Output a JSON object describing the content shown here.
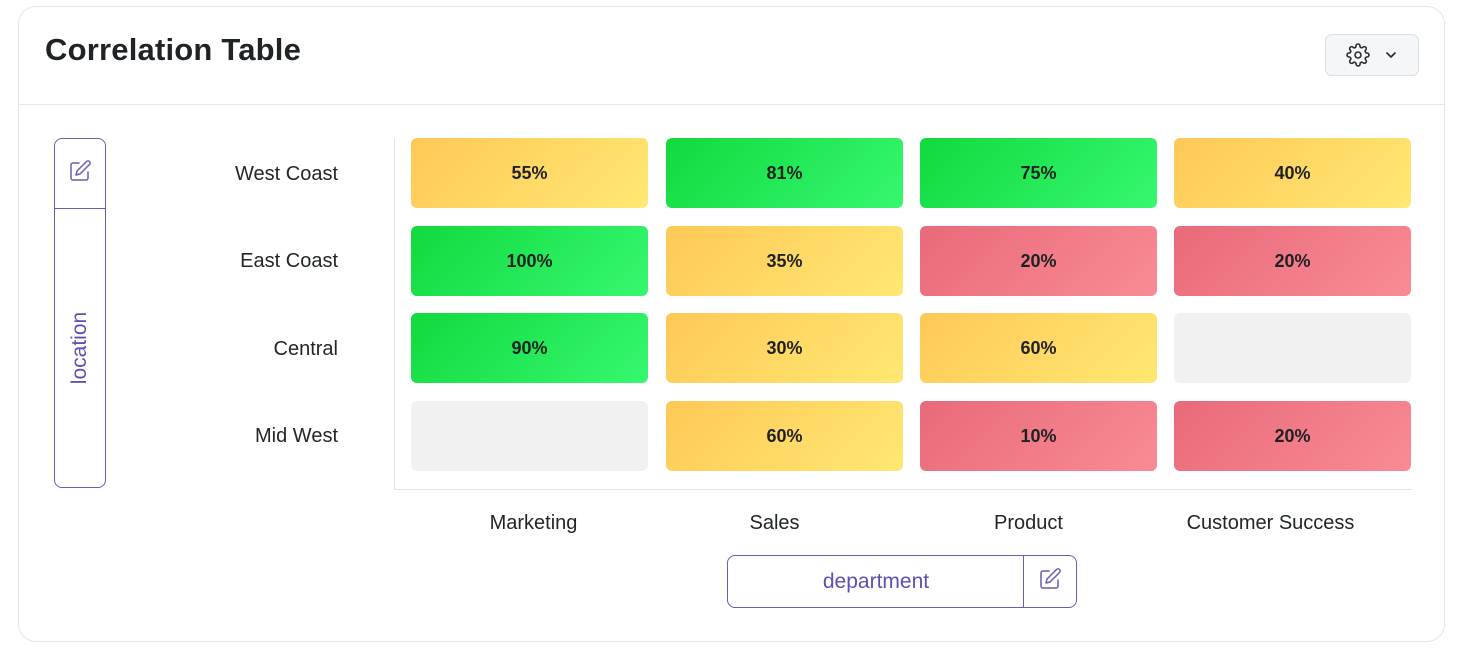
{
  "header": {
    "title": "Correlation Table",
    "settings_icon": "gear-icon",
    "dropdown_icon": "chevron-down-icon"
  },
  "row_axis": {
    "label": "location",
    "edit_icon": "edit-icon"
  },
  "column_axis": {
    "label": "department",
    "edit_icon": "edit-icon"
  },
  "rows": [
    "West Coast",
    "East Coast",
    "Central",
    "Mid West"
  ],
  "columns": [
    "Marketing",
    "Sales",
    "Product",
    "Customer Success"
  ],
  "cells": [
    [
      {
        "text": "55%",
        "value": 55,
        "status": "yellow"
      },
      {
        "text": "81%",
        "value": 81,
        "status": "green"
      },
      {
        "text": "75%",
        "value": 75,
        "status": "green"
      },
      {
        "text": "40%",
        "value": 40,
        "status": "yellow"
      }
    ],
    [
      {
        "text": "100%",
        "value": 100,
        "status": "green"
      },
      {
        "text": "35%",
        "value": 35,
        "status": "yellow"
      },
      {
        "text": "20%",
        "value": 20,
        "status": "red"
      },
      {
        "text": "20%",
        "value": 20,
        "status": "red"
      }
    ],
    [
      {
        "text": "90%",
        "value": 90,
        "status": "green"
      },
      {
        "text": "30%",
        "value": 30,
        "status": "yellow"
      },
      {
        "text": "60%",
        "value": 60,
        "status": "yellow"
      },
      {
        "text": "",
        "value": null,
        "status": "empty"
      }
    ],
    [
      {
        "text": "",
        "value": null,
        "status": "empty"
      },
      {
        "text": "60%",
        "value": 60,
        "status": "yellow"
      },
      {
        "text": "10%",
        "value": 10,
        "status": "red"
      },
      {
        "text": "20%",
        "value": 20,
        "status": "red"
      }
    ]
  ],
  "colors": {
    "green": "#22e856",
    "yellow": "#ffd965",
    "red": "#f07b87",
    "empty": "#f1f1f1",
    "accent": "#5e4fb0"
  }
}
